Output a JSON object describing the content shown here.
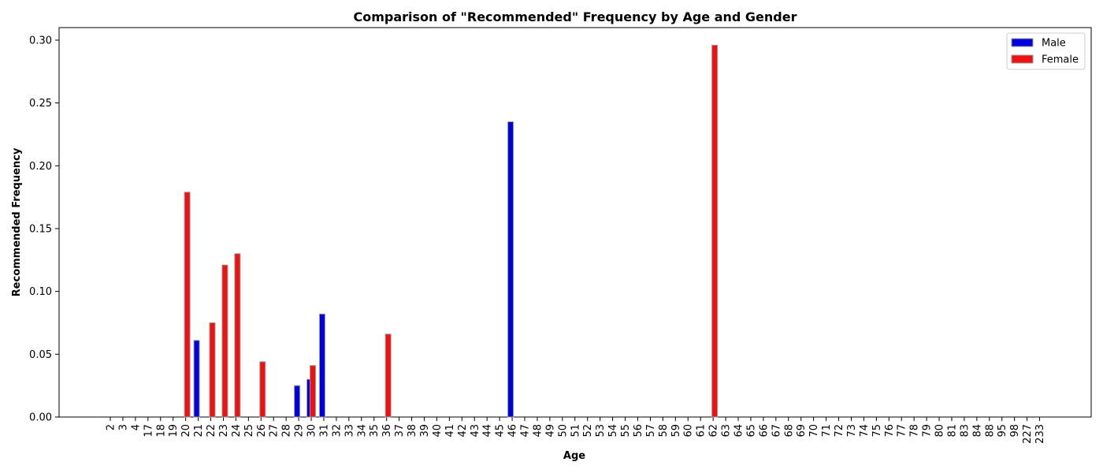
{
  "chart_data": {
    "type": "bar",
    "title": "Comparison of \"Recommended\" Frequency by Age and Gender",
    "xlabel": "Age",
    "ylabel": "Recommended Frequency",
    "ylim": [
      0,
      0.31
    ],
    "yticks": [
      "0.00",
      "0.05",
      "0.10",
      "0.15",
      "0.20",
      "0.25",
      "0.30"
    ],
    "categories": [
      "2",
      "3",
      "4",
      "17",
      "18",
      "19",
      "20",
      "21",
      "22",
      "23",
      "24",
      "25",
      "26",
      "27",
      "28",
      "29",
      "30",
      "31",
      "32",
      "33",
      "34",
      "35",
      "36",
      "37",
      "38",
      "39",
      "40",
      "41",
      "42",
      "43",
      "44",
      "45",
      "46",
      "47",
      "48",
      "49",
      "50",
      "51",
      "52",
      "53",
      "54",
      "55",
      "56",
      "57",
      "58",
      "59",
      "60",
      "61",
      "62",
      "63",
      "64",
      "65",
      "66",
      "67",
      "68",
      "69",
      "70",
      "71",
      "72",
      "73",
      "74",
      "75",
      "76",
      "77",
      "78",
      "79",
      "80",
      "81",
      "83",
      "84",
      "88",
      "95",
      "98",
      "227",
      "233"
    ],
    "series": [
      {
        "name": "Male",
        "color": "#0000dd",
        "points": [
          {
            "x": "21",
            "y": 0.061
          },
          {
            "x": "29",
            "y": 0.025
          },
          {
            "x": "30",
            "y": 0.03
          },
          {
            "x": "31",
            "y": 0.082
          },
          {
            "x": "46",
            "y": 0.235
          }
        ]
      },
      {
        "name": "Female",
        "color": "#ee1111",
        "points": [
          {
            "x": "20",
            "y": 0.179
          },
          {
            "x": "22",
            "y": 0.075
          },
          {
            "x": "23",
            "y": 0.121
          },
          {
            "x": "24",
            "y": 0.13
          },
          {
            "x": "26",
            "y": 0.044
          },
          {
            "x": "30",
            "y": 0.041
          },
          {
            "x": "36",
            "y": 0.066
          },
          {
            "x": "62",
            "y": 0.296
          }
        ]
      }
    ],
    "legend_position": "top-right",
    "grid": false
  }
}
